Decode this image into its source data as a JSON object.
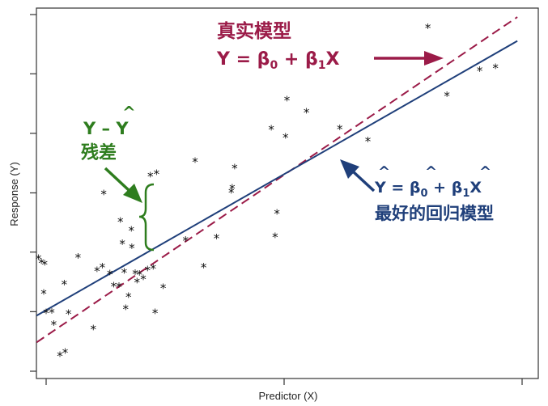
{
  "chart_data": {
    "type": "scatter",
    "xlabel": "Predictor (X)",
    "ylabel": "Response (Y)",
    "xlim": [
      0,
      100
    ],
    "ylim": [
      0,
      100
    ],
    "grid": false,
    "x_ticks": [
      0,
      50,
      100
    ],
    "y_ticks": [
      0,
      16.7,
      33.4,
      50,
      66.7,
      83.4,
      100
    ],
    "points": [
      [
        -1.6,
        31.6
      ],
      [
        -1.0,
        30.5
      ],
      [
        -0.3,
        30.0
      ],
      [
        -0.5,
        21.9
      ],
      [
        0.0,
        16.4
      ],
      [
        1.2,
        16.6
      ],
      [
        1.6,
        13.1
      ],
      [
        2.9,
        4.4
      ],
      [
        4.0,
        5.3
      ],
      [
        3.8,
        24.5
      ],
      [
        4.7,
        16.2
      ],
      [
        6.7,
        32.0
      ],
      [
        9.9,
        11.9
      ],
      [
        10.7,
        28.2
      ],
      [
        11.8,
        29.2
      ],
      [
        12.1,
        49.8
      ],
      [
        13.4,
        27.3
      ],
      [
        14.2,
        23.9
      ],
      [
        15.3,
        23.8
      ],
      [
        15.6,
        42.1
      ],
      [
        16.0,
        35.8
      ],
      [
        16.4,
        27.8
      ],
      [
        16.7,
        17.6
      ],
      [
        17.3,
        21.0
      ],
      [
        17.9,
        39.6
      ],
      [
        18.0,
        34.7
      ],
      [
        18.7,
        27.4
      ],
      [
        19.1,
        25.1
      ],
      [
        19.6,
        27.2
      ],
      [
        20.4,
        26.0
      ],
      [
        21.3,
        28.5
      ],
      [
        21.9,
        54.8
      ],
      [
        22.5,
        28.9
      ],
      [
        23.2,
        55.4
      ],
      [
        22.9,
        16.4
      ],
      [
        24.6,
        23.5
      ],
      [
        29.3,
        36.7
      ],
      [
        31.3,
        58.8
      ],
      [
        33.1,
        29.3
      ],
      [
        35.8,
        37.4
      ],
      [
        38.9,
        50.2
      ],
      [
        39.1,
        51.4
      ],
      [
        39.6,
        57.0
      ],
      [
        48.1,
        37.7
      ],
      [
        48.5,
        44.3
      ],
      [
        47.3,
        67.9
      ],
      [
        50.3,
        65.7
      ],
      [
        50.6,
        76.1
      ],
      [
        54.7,
        72.7
      ],
      [
        61.7,
        68.0
      ],
      [
        67.6,
        64.6
      ],
      [
        80.2,
        96.4
      ],
      [
        84.2,
        77.3
      ],
      [
        91.1,
        84.3
      ],
      [
        94.4,
        85.1
      ]
    ],
    "lines": [
      {
        "name": "true_model",
        "color": "#9b1b48",
        "dash": true,
        "x": [
          -2,
          99
        ],
        "y": [
          8.1,
          99.3
        ]
      },
      {
        "name": "fitted_model",
        "color": "#1f3f7a",
        "dash": false,
        "x": [
          -2,
          99
        ],
        "y": [
          15.6,
          92.6
        ]
      }
    ]
  },
  "annotations": {
    "true_model_label": "真实模型",
    "true_model_formula": "Y = β0 + β1X",
    "residual_formula": "Y – Y",
    "residual_label": "残差",
    "fit_formula": "Y = β0 + β1X",
    "fit_label": "最好的回归模型",
    "hat_symbol": "^"
  },
  "colors": {
    "true_model": "#9b1b48",
    "fitted_model": "#1f3f7a",
    "residual": "#2e7d1e",
    "points": "#111111",
    "axis": "#333333"
  }
}
